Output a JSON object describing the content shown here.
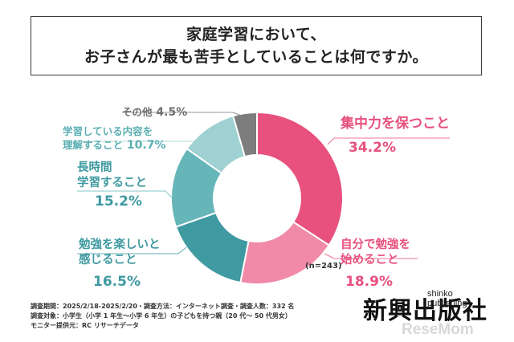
{
  "question": {
    "line1": "家庭学習において、",
    "line2": "お子さんが最も苦手としていることは何ですか。"
  },
  "chart_data": {
    "type": "pie",
    "donut": true,
    "n_label": "(n=243)",
    "slices": [
      {
        "label_lines": [
          "集中力を保つこと"
        ],
        "value": 34.2,
        "pct": "34.2%",
        "color": "#e8517e"
      },
      {
        "label_lines": [
          "自分で勉強を",
          "始めること"
        ],
        "value": 18.9,
        "pct": "18.9%",
        "color": "#f08aa8"
      },
      {
        "label_lines": [
          "勉強を楽しいと",
          "感じること"
        ],
        "value": 16.5,
        "pct": "16.5%",
        "color": "#3f9aa1"
      },
      {
        "label_lines": [
          "長時間",
          "学習すること"
        ],
        "value": 15.2,
        "pct": "15.2%",
        "color": "#66b5b9"
      },
      {
        "label_lines": [
          "学習している内容を",
          "理解すること"
        ],
        "value": 10.7,
        "pct": "10.7%",
        "color": "#9fd1d2"
      },
      {
        "label_lines": [
          "その他"
        ],
        "value": 4.5,
        "pct": "4.5%",
        "color": "#7d7d7d"
      }
    ]
  },
  "notes": {
    "line1": "調査期間：2025/2/18-2025/2/20・調査方法：インターネット調査・調査人数：332 名",
    "line2": "調査対象：小学生（小学 1 年生～小学 6 年生）の子どもを持つ親（20 代～ 50 代男女）",
    "line3": "モニター提供元：RC リサーチデータ"
  },
  "logo": {
    "main": "新興出版社",
    "sub": "shinko publishing"
  },
  "watermark": "ReseMom"
}
